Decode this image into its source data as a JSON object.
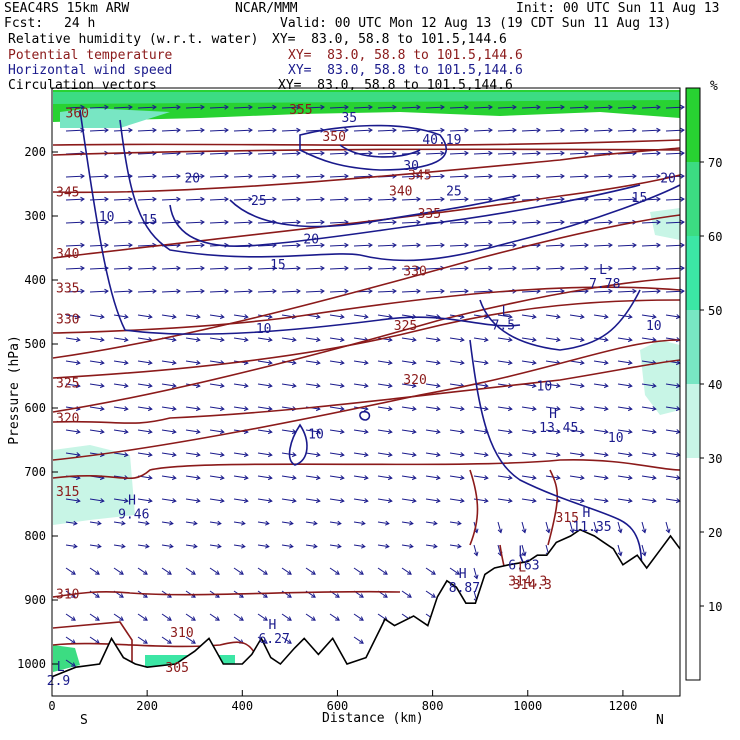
{
  "header": {
    "model": "SEAC4RS 15km ARW",
    "org": "NCAR/MMM",
    "init": "Init: 00 UTC Sun 11 Aug 13",
    "fcst_label": "Fcst:",
    "fcst_value": "24 h",
    "valid": "Valid: 00 UTC Mon 12 Aug 13 (19 CDT Sun 11 Aug 13)"
  },
  "fields": [
    {
      "name": "Relative humidity (w.r.t. water)",
      "xy": "XY=  83.0, 58.8 to 101.5,144.6",
      "color": "#000000"
    },
    {
      "name": "Potential temperature",
      "xy": "XY=  83.0, 58.8 to 101.5,144.6",
      "color": "#8b1a1a"
    },
    {
      "name": "Horizontal wind speed",
      "xy": "XY=  83.0, 58.8 to 101.5,144.6",
      "color": "#1a1a8c"
    },
    {
      "name": "Circulation vectors",
      "xy": "XY=  83.0, 58.8 to 101.5,144.6",
      "color": "#000000"
    }
  ],
  "colorbar": {
    "unit": "%",
    "ticks": [
      10,
      20,
      30,
      40,
      50,
      60,
      70
    ],
    "range": [
      0,
      80
    ],
    "bands": [
      {
        "from": 0,
        "to": 30,
        "color": "#ffffff"
      },
      {
        "from": 30,
        "to": 40,
        "color": "#c8f5e6"
      },
      {
        "from": 40,
        "to": 50,
        "color": "#78e6c3"
      },
      {
        "from": 50,
        "to": 60,
        "color": "#3ce6a5"
      },
      {
        "from": 60,
        "to": 70,
        "color": "#3cdc82"
      },
      {
        "from": 70,
        "to": 80,
        "color": "#28d232"
      }
    ]
  },
  "chart_data": {
    "type": "cross-section",
    "xlabel": "Distance (km)",
    "ylabel": "Pressure (hPa)",
    "xlim": [
      0,
      1320
    ],
    "ylim": [
      1050,
      100
    ],
    "x_ticks": [
      0,
      200,
      400,
      600,
      800,
      1000,
      1200
    ],
    "y_ticks": [
      200,
      300,
      400,
      500,
      600,
      700,
      800,
      900,
      1000
    ],
    "end_labels": {
      "left": "S",
      "right": "N"
    },
    "theta_contours": [
      {
        "label": "360",
        "x": 20,
        "p": 138
      },
      {
        "label": "355",
        "x": 490,
        "p": 133
      },
      {
        "label": "350",
        "x": 560,
        "p": 175
      },
      {
        "label": "345",
        "x": 0,
        "p": 262
      },
      {
        "label": "345",
        "x": 740,
        "p": 235
      },
      {
        "label": "340",
        "x": 0,
        "p": 358
      },
      {
        "label": "340",
        "x": 700,
        "p": 260
      },
      {
        "label": "335",
        "x": 0,
        "p": 412
      },
      {
        "label": "335",
        "x": 760,
        "p": 295
      },
      {
        "label": "330",
        "x": 0,
        "p": 460
      },
      {
        "label": "330",
        "x": 730,
        "p": 385
      },
      {
        "label": "325",
        "x": 0,
        "p": 560
      },
      {
        "label": "325",
        "x": 710,
        "p": 470
      },
      {
        "label": "320",
        "x": 0,
        "p": 615
      },
      {
        "label": "320",
        "x": 730,
        "p": 555
      },
      {
        "label": "315",
        "x": 0,
        "p": 730
      },
      {
        "label": "315",
        "x": 1050,
        "p": 770
      },
      {
        "label": "310",
        "x": 0,
        "p": 890
      },
      {
        "label": "310",
        "x": 240,
        "p": 950
      },
      {
        "label": "305",
        "x": 230,
        "p": 1005
      },
      {
        "label": "314.3",
        "x": 960,
        "p": 875
      }
    ],
    "speed_contours": [
      {
        "label": "10",
        "x": 90,
        "p": 300
      },
      {
        "label": "15",
        "x": 180,
        "p": 305
      },
      {
        "label": "20",
        "x": 270,
        "p": 240
      },
      {
        "label": "25",
        "x": 410,
        "p": 275
      },
      {
        "label": "25",
        "x": 820,
        "p": 260
      },
      {
        "label": "30",
        "x": 730,
        "p": 220
      },
      {
        "label": "35",
        "x": 600,
        "p": 145
      },
      {
        "label": "40.19",
        "x": 770,
        "p": 180
      },
      {
        "label": "20",
        "x": 520,
        "p": 335
      },
      {
        "label": "20",
        "x": 1270,
        "p": 240
      },
      {
        "label": "15",
        "x": 450,
        "p": 375
      },
      {
        "label": "15",
        "x": 1210,
        "p": 270
      },
      {
        "label": "10",
        "x": 420,
        "p": 475
      },
      {
        "label": "10",
        "x": 530,
        "p": 640
      },
      {
        "label": "10",
        "x": 1010,
        "p": 565
      },
      {
        "label": "10",
        "x": 1240,
        "p": 470
      },
      {
        "label": "10",
        "x": 1160,
        "p": 645
      }
    ],
    "extrema": [
      {
        "type": "L",
        "value": "7.78",
        "x": 1150,
        "p": 400
      },
      {
        "type": "L",
        "value": "7.5",
        "x": 945,
        "p": 465
      },
      {
        "type": "H",
        "value": "13.45",
        "x": 1045,
        "p": 625
      },
      {
        "type": "H",
        "value": "9.46",
        "x": 160,
        "p": 760
      },
      {
        "type": "H",
        "value": "11.35",
        "x": 1115,
        "p": 780
      },
      {
        "type": "L",
        "value": "6.63",
        "x": 980,
        "p": 840
      },
      {
        "type": "H",
        "value": "8.87",
        "x": 855,
        "p": 875
      },
      {
        "type": "L",
        "value": "314.3",
        "x": 980,
        "p": 865
      },
      {
        "type": "H",
        "value": "6.27",
        "x": 455,
        "p": 955
      },
      {
        "type": "L",
        "value": "2.9",
        "x": 10,
        "p": 1020
      }
    ],
    "terrain_p": [
      [
        0,
        1020
      ],
      [
        50,
        1005
      ],
      [
        100,
        1000
      ],
      [
        125,
        960
      ],
      [
        150,
        990
      ],
      [
        175,
        1000
      ],
      [
        200,
        1005
      ],
      [
        260,
        1000
      ],
      [
        300,
        980
      ],
      [
        330,
        960
      ],
      [
        360,
        1000
      ],
      [
        400,
        1000
      ],
      [
        420,
        985
      ],
      [
        440,
        960
      ],
      [
        460,
        990
      ],
      [
        480,
        1000
      ],
      [
        510,
        975
      ],
      [
        530,
        960
      ],
      [
        560,
        985
      ],
      [
        590,
        960
      ],
      [
        620,
        1000
      ],
      [
        660,
        990
      ],
      [
        700,
        930
      ],
      [
        720,
        940
      ],
      [
        760,
        925
      ],
      [
        790,
        940
      ],
      [
        810,
        895
      ],
      [
        830,
        870
      ],
      [
        850,
        880
      ],
      [
        870,
        905
      ],
      [
        890,
        905
      ],
      [
        910,
        860
      ],
      [
        930,
        850
      ],
      [
        960,
        845
      ],
      [
        1000,
        840
      ],
      [
        1020,
        830
      ],
      [
        1040,
        830
      ],
      [
        1060,
        810
      ],
      [
        1090,
        800
      ],
      [
        1110,
        790
      ],
      [
        1140,
        800
      ],
      [
        1160,
        810
      ],
      [
        1180,
        820
      ],
      [
        1200,
        845
      ],
      [
        1230,
        830
      ],
      [
        1250,
        850
      ],
      [
        1280,
        820
      ],
      [
        1300,
        800
      ],
      [
        1320,
        820
      ]
    ]
  }
}
